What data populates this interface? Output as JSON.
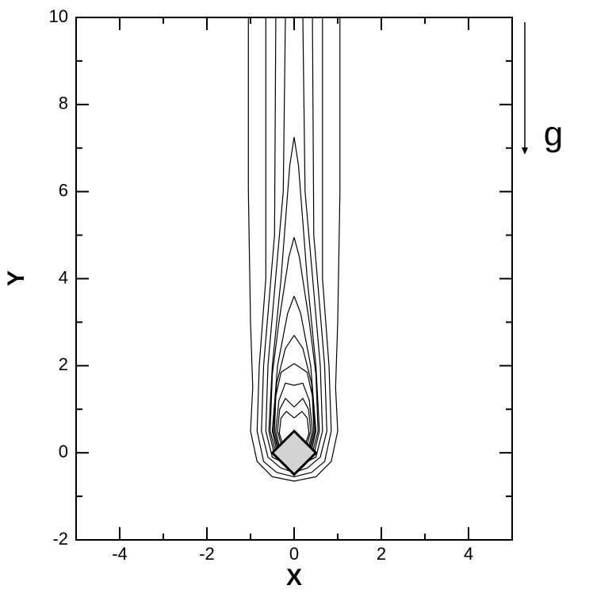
{
  "chart_data": {
    "type": "contour",
    "xlabel": "X",
    "ylabel": "Y",
    "annotation": "g",
    "xlim": [
      -5,
      5
    ],
    "ylim": [
      -2,
      10
    ],
    "xticks": [
      -4,
      -2,
      0,
      2,
      4
    ],
    "yticks": [
      -2,
      0,
      2,
      4,
      6,
      8,
      10
    ],
    "xminorticks": [
      -5,
      -3,
      -1,
      1,
      3,
      5
    ],
    "yminorticks": [
      -1,
      1,
      3,
      5,
      7,
      9
    ],
    "line_color": "#000000",
    "body": {
      "color": "#d3d3d3",
      "x": [
        0,
        0.5,
        0,
        -0.5,
        0
      ],
      "y": [
        0.5,
        0,
        -0.5,
        0,
        0.5
      ]
    },
    "contours": [
      {
        "x": [
          -1.05,
          -1.05,
          -1.0,
          -0.95,
          -1.0,
          -0.85,
          -0.5,
          0,
          0.5,
          0.85,
          1.0,
          0.95,
          1.0,
          1.05,
          1.05
        ],
        "y": [
          10,
          6,
          3,
          1.5,
          0.5,
          -0.2,
          -0.55,
          -0.65,
          -0.55,
          -0.2,
          0.5,
          1.5,
          3,
          6,
          10
        ]
      },
      {
        "x": [
          -0.65,
          -0.65,
          -0.8,
          -0.85,
          -0.7,
          -0.4,
          0,
          0.4,
          0.7,
          0.85,
          0.8,
          0.65,
          0.65
        ],
        "y": [
          10,
          4,
          2,
          0.5,
          -0.2,
          -0.45,
          -0.55,
          -0.45,
          -0.2,
          0.5,
          2,
          4,
          10
        ]
      },
      {
        "x": [
          -0.42,
          -0.45,
          -0.7,
          -0.75,
          -0.6,
          -0.3,
          0,
          0.3,
          0.6,
          0.75,
          0.7,
          0.45,
          0.42
        ],
        "y": [
          10,
          5,
          2,
          0.5,
          -0.1,
          -0.35,
          -0.45,
          -0.35,
          -0.1,
          0.5,
          2,
          5,
          10
        ]
      },
      {
        "x": [
          -0.2,
          -0.25,
          -0.6,
          -0.65,
          -0.5,
          0,
          0.5,
          0.65,
          0.6,
          0.25,
          0.2
        ],
        "y": [
          10,
          6,
          2,
          0.5,
          -0.1,
          -0.35,
          -0.1,
          0.5,
          2,
          6,
          10
        ]
      },
      {
        "x": [
          0,
          -0.1,
          -0.3,
          -0.5,
          -0.58,
          -0.45,
          0,
          0.45,
          0.58,
          0.5,
          0.3,
          0.1,
          0
        ],
        "y": [
          7.25,
          6.6,
          4,
          2,
          0.5,
          -0.05,
          -0.3,
          -0.05,
          0.5,
          2,
          4,
          6.6,
          7.25
        ]
      },
      {
        "x": [
          0,
          -0.12,
          -0.35,
          -0.5,
          -0.55,
          -0.42,
          0,
          0.42,
          0.55,
          0.5,
          0.35,
          0.12,
          0
        ],
        "y": [
          4.95,
          4.5,
          3,
          1.8,
          0.5,
          0,
          -0.25,
          0,
          0.5,
          1.8,
          3,
          4.5,
          4.95
        ]
      },
      {
        "x": [
          0,
          -0.15,
          -0.38,
          -0.5,
          -0.4,
          0,
          0.4,
          0.5,
          0.38,
          0.15,
          0
        ],
        "y": [
          3.6,
          3.2,
          2,
          0.5,
          0.05,
          -0.2,
          0.05,
          0.5,
          2,
          3.2,
          3.6
        ]
      },
      {
        "x": [
          0,
          -0.2,
          -0.4,
          -0.48,
          -0.38,
          0,
          0.38,
          0.48,
          0.4,
          0.2,
          0
        ],
        "y": [
          2.7,
          2.4,
          1.6,
          0.5,
          0.1,
          -0.15,
          0.1,
          0.5,
          1.6,
          2.4,
          2.7
        ]
      },
      {
        "x": [
          0,
          -0.3,
          -0.42,
          -0.45,
          -0.36,
          0,
          0.36,
          0.45,
          0.42,
          0.3,
          0
        ],
        "y": [
          2.05,
          1.85,
          1.3,
          0.5,
          0.12,
          -0.12,
          0.12,
          0.5,
          1.3,
          1.85,
          2.05
        ]
      },
      {
        "x": [
          0,
          -0.2,
          -0.35,
          -0.42,
          -0.34,
          0,
          0.34,
          0.42,
          0.35,
          0.2,
          0
        ],
        "y": [
          1.55,
          1.6,
          1.2,
          0.5,
          0.15,
          -0.1,
          0.15,
          0.5,
          1.2,
          1.6,
          1.55
        ]
      },
      {
        "x": [
          0,
          -0.2,
          -0.33,
          -0.38,
          -0.3,
          0,
          0.3,
          0.38,
          0.33,
          0.2,
          0
        ],
        "y": [
          1.05,
          1.25,
          1.0,
          0.5,
          0.2,
          -0.05,
          0.2,
          0.5,
          1.0,
          1.25,
          1.05
        ]
      },
      {
        "x": [
          0,
          -0.18,
          -0.3,
          -0.34,
          -0.26,
          0,
          0.26,
          0.34,
          0.3,
          0.18,
          0
        ],
        "y": [
          0.8,
          0.95,
          0.8,
          0.45,
          0.2,
          0,
          0.2,
          0.45,
          0.8,
          0.95,
          0.8
        ]
      }
    ]
  }
}
